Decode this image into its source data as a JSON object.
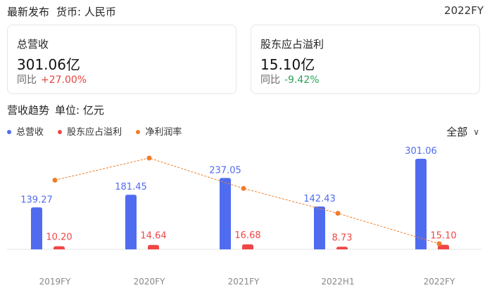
{
  "header": {
    "title": "最新发布",
    "currency": "货币: 人民币",
    "period": "2022FY"
  },
  "cards": [
    {
      "label": "总营收",
      "value": "301.06亿",
      "yoy_label": "同比",
      "yoy_value": "+27.00%",
      "trend": "up"
    },
    {
      "label": "股东应占溢利",
      "value": "15.10亿",
      "yoy_label": "同比",
      "yoy_value": "-9.42%",
      "trend": "down"
    }
  ],
  "trend": {
    "title": "营收趋势",
    "unit": "单位: 亿元"
  },
  "filter": {
    "label": "全部"
  },
  "colors": {
    "revenue": "#4f6cf0",
    "profit": "#f04646",
    "margin": "#f07d28",
    "up": "#e8423f",
    "down": "#2ea05a"
  },
  "chart_data": {
    "type": "bar",
    "categories": [
      "2019FY",
      "2020FY",
      "2021FY",
      "2022H1",
      "2022FY"
    ],
    "series": [
      {
        "name": "总营收",
        "kind": "bar",
        "values": [
          139.27,
          181.45,
          237.05,
          142.43,
          301.06
        ]
      },
      {
        "name": "股东应占溢利",
        "kind": "bar",
        "values": [
          10.2,
          14.64,
          16.68,
          8.73,
          15.1
        ]
      },
      {
        "name": "净利润率",
        "kind": "line",
        "values": [
          7.3,
          8.1,
          7.0,
          6.1,
          5.0
        ]
      }
    ],
    "value_labels": {
      "总营收": [
        "139.27",
        "181.45",
        "237.05",
        "142.43",
        "301.06"
      ],
      "股东应占溢利": [
        "10.20",
        "14.64",
        "16.68",
        "8.73",
        "15.10"
      ]
    },
    "legend_position": "top-left",
    "grid": false
  }
}
